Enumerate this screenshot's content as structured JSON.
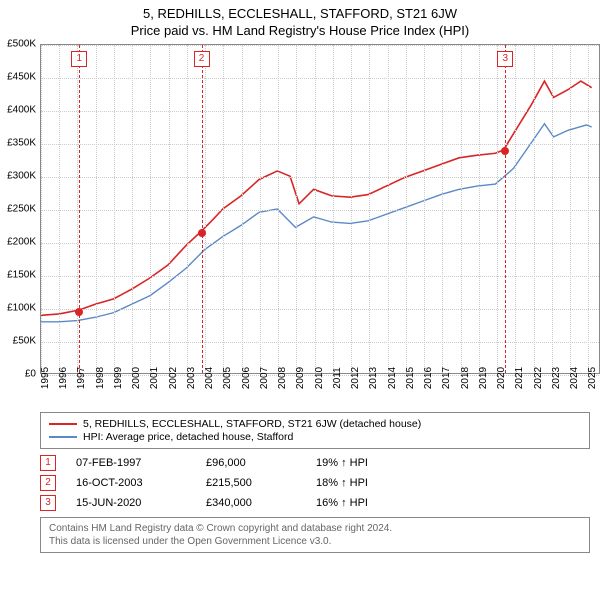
{
  "title_line1": "5, REDHILLS, ECCLESHALL, STAFFORD, ST21 6JW",
  "title_line2": "Price paid vs. HM Land Registry's House Price Index (HPI)",
  "chart": {
    "type": "line",
    "background_color": "#ffffff",
    "grid_color": "#cccccc",
    "border_color": "#888888",
    "x": {
      "min": 1995,
      "max": 2025.7,
      "ticks": [
        1995,
        1996,
        1997,
        1998,
        1999,
        2000,
        2001,
        2002,
        2003,
        2004,
        2005,
        2006,
        2007,
        2008,
        2009,
        2010,
        2011,
        2012,
        2013,
        2014,
        2015,
        2016,
        2017,
        2018,
        2019,
        2020,
        2021,
        2022,
        2023,
        2024,
        2025
      ],
      "label_fontsize": 10,
      "rotation": -90
    },
    "y": {
      "min": 0,
      "max": 500000,
      "ticks": [
        0,
        50000,
        100000,
        150000,
        200000,
        250000,
        300000,
        350000,
        400000,
        450000,
        500000
      ],
      "tick_labels": [
        "£0",
        "£50K",
        "£100K",
        "£150K",
        "£200K",
        "£250K",
        "£300K",
        "£350K",
        "£400K",
        "£450K",
        "£500K"
      ],
      "label_fontsize": 10
    },
    "series": [
      {
        "name": "property",
        "label": "5, REDHILLS, ECCLESHALL, STAFFORD, ST21 6JW (detached house)",
        "color": "#d92525",
        "line_width": 1.6,
        "points": [
          [
            1995.0,
            88000
          ],
          [
            1996.0,
            90000
          ],
          [
            1997.1,
            96000
          ],
          [
            1998.0,
            105000
          ],
          [
            1999.0,
            113000
          ],
          [
            2000.0,
            128000
          ],
          [
            2001.0,
            145000
          ],
          [
            2002.0,
            165000
          ],
          [
            2003.0,
            195000
          ],
          [
            2003.8,
            215500
          ],
          [
            2004.5,
            235000
          ],
          [
            2005.0,
            250000
          ],
          [
            2006.0,
            270000
          ],
          [
            2007.0,
            295000
          ],
          [
            2008.0,
            308000
          ],
          [
            2008.7,
            300000
          ],
          [
            2009.2,
            258000
          ],
          [
            2010.0,
            280000
          ],
          [
            2011.0,
            270000
          ],
          [
            2012.0,
            268000
          ],
          [
            2013.0,
            272000
          ],
          [
            2014.0,
            285000
          ],
          [
            2015.0,
            298000
          ],
          [
            2016.0,
            308000
          ],
          [
            2017.0,
            318000
          ],
          [
            2018.0,
            328000
          ],
          [
            2019.0,
            332000
          ],
          [
            2020.0,
            335000
          ],
          [
            2020.45,
            340000
          ],
          [
            2021.0,
            365000
          ],
          [
            2022.0,
            410000
          ],
          [
            2022.7,
            445000
          ],
          [
            2023.2,
            420000
          ],
          [
            2024.0,
            432000
          ],
          [
            2024.7,
            445000
          ],
          [
            2025.3,
            435000
          ]
        ]
      },
      {
        "name": "hpi",
        "label": "HPI: Average price, detached house, Stafford",
        "color": "#5b89c7",
        "line_width": 1.4,
        "points": [
          [
            1995.0,
            78000
          ],
          [
            1996.0,
            78000
          ],
          [
            1997.0,
            80000
          ],
          [
            1998.0,
            85000
          ],
          [
            1999.0,
            92000
          ],
          [
            2000.0,
            105000
          ],
          [
            2001.0,
            118000
          ],
          [
            2002.0,
            138000
          ],
          [
            2003.0,
            160000
          ],
          [
            2004.0,
            188000
          ],
          [
            2005.0,
            208000
          ],
          [
            2006.0,
            225000
          ],
          [
            2007.0,
            245000
          ],
          [
            2008.0,
            250000
          ],
          [
            2009.0,
            222000
          ],
          [
            2010.0,
            238000
          ],
          [
            2011.0,
            230000
          ],
          [
            2012.0,
            228000
          ],
          [
            2013.0,
            232000
          ],
          [
            2014.0,
            242000
          ],
          [
            2015.0,
            252000
          ],
          [
            2016.0,
            262000
          ],
          [
            2017.0,
            272000
          ],
          [
            2018.0,
            280000
          ],
          [
            2019.0,
            285000
          ],
          [
            2020.0,
            288000
          ],
          [
            2021.0,
            312000
          ],
          [
            2022.0,
            352000
          ],
          [
            2022.7,
            380000
          ],
          [
            2023.2,
            360000
          ],
          [
            2024.0,
            370000
          ],
          [
            2025.0,
            378000
          ],
          [
            2025.3,
            375000
          ]
        ]
      }
    ],
    "markers": [
      {
        "n": "1",
        "x": 1997.1,
        "y": 96000,
        "color": "#d92525"
      },
      {
        "n": "2",
        "x": 2003.8,
        "y": 215500,
        "color": "#d92525"
      },
      {
        "n": "3",
        "x": 2020.45,
        "y": 340000,
        "color": "#d92525"
      }
    ]
  },
  "legend": {
    "border_color": "#888888",
    "fontsize": 10.5
  },
  "marker_table": [
    {
      "n": "1",
      "date": "07-FEB-1997",
      "price": "£96,000",
      "pct": "19% ↑ HPI",
      "color": "#d92525"
    },
    {
      "n": "2",
      "date": "16-OCT-2003",
      "price": "£215,500",
      "pct": "18% ↑ HPI",
      "color": "#d92525"
    },
    {
      "n": "3",
      "date": "15-JUN-2020",
      "price": "£340,000",
      "pct": "16% ↑ HPI",
      "color": "#d92525"
    }
  ],
  "attribution": {
    "line1": "Contains HM Land Registry data © Crown copyright and database right 2024.",
    "line2": "This data is licensed under the Open Government Licence v3.0."
  }
}
